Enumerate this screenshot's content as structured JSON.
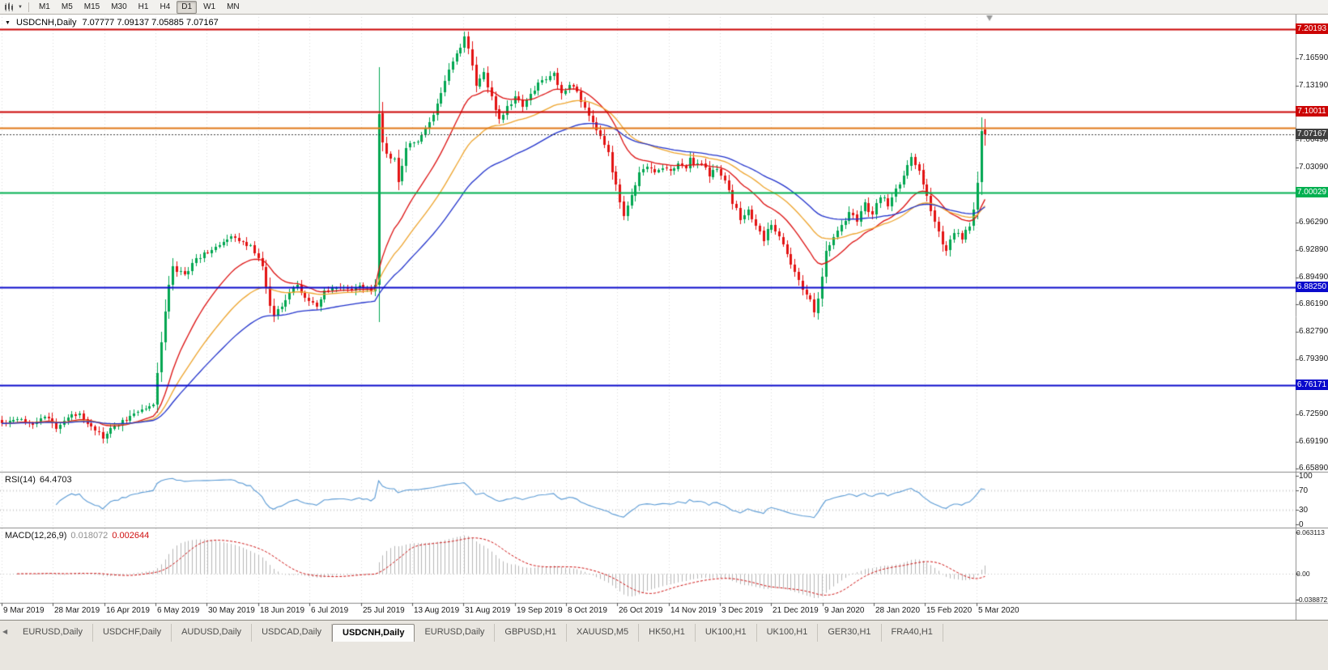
{
  "toolbar": {
    "timeframes": [
      "M1",
      "M5",
      "M15",
      "M30",
      "H1",
      "H4",
      "D1",
      "W1",
      "MN"
    ],
    "active_timeframe": "D1",
    "chart_type_icon": "candlestick-chart-icon"
  },
  "panels": {
    "rsi": {
      "name": "RSI(14)",
      "value": "64.4703",
      "axis": [
        {
          "text": "100",
          "v": 100
        },
        {
          "text": "70",
          "v": 70
        },
        {
          "text": "30",
          "v": 30
        },
        {
          "text": "0",
          "v": 0
        }
      ]
    },
    "macd": {
      "name": "MACD(12,26,9)",
      "value_main": "0.018072",
      "value_signal": "0.002644",
      "axis": [
        {
          "text": "0.063113",
          "v": 0.063113
        },
        {
          "text": "0.00",
          "v": 0
        },
        {
          "text": "-0.038872",
          "v": -0.038872
        }
      ]
    }
  },
  "tabs": {
    "items": [
      "EURUSD,Daily",
      "USDCHF,Daily",
      "AUDUSD,Daily",
      "USDCAD,Daily",
      "USDCNH,Daily",
      "EURUSD,Daily",
      "GBPUSD,H1",
      "XAUUSD,M5",
      "HK50,H1",
      "UK100,H1",
      "UK100,H1",
      "GER30,H1",
      "FRA40,H1"
    ],
    "active_index": 4
  },
  "chart_data": {
    "type": "candlestick",
    "symbol_title": "USDCNH,Daily",
    "ohlc_display": "7.07777 7.09137 7.05885 7.07167",
    "ohlc_current": {
      "open": 7.07777,
      "high": 7.09137,
      "low": 7.05885,
      "close": 7.07167
    },
    "ylim": [
      6.6549,
      7.2209
    ],
    "num_candles": 254,
    "candle_spacing": 4.8,
    "candle_up_color": "#00a651",
    "candle_down_color": "#e31212",
    "price_axis_labels": [
      {
        "text": "7.16590",
        "price": 7.1659
      },
      {
        "text": "7.13190",
        "price": 7.1319
      },
      {
        "text": "7.06490",
        "price": 7.0649
      },
      {
        "text": "7.03090",
        "price": 7.0309
      },
      {
        "text": "6.96290",
        "price": 6.9629
      },
      {
        "text": "6.92890",
        "price": 6.9289
      },
      {
        "text": "6.89490",
        "price": 6.8949
      },
      {
        "text": "6.86190",
        "price": 6.8619
      },
      {
        "text": "6.82790",
        "price": 6.8279
      },
      {
        "text": "6.79390",
        "price": 6.7939
      },
      {
        "text": "6.72590",
        "price": 6.7259
      },
      {
        "text": "6.69190",
        "price": 6.6919
      },
      {
        "text": "6.65890",
        "price": 6.6589
      }
    ],
    "levels": [
      {
        "price": 7.20193,
        "label": "7.20193",
        "color": "#cc0404",
        "style": "solid",
        "role": "resistance"
      },
      {
        "price": 7.10011,
        "label": "7.10011",
        "color": "#cc0404",
        "style": "solid",
        "role": "resistance"
      },
      {
        "price": 7.08,
        "label": "",
        "color": "#e07818",
        "style": "solid",
        "role": "level"
      },
      {
        "price": 7.07167,
        "label": "7.07167",
        "color": "#3f3f3f",
        "style": "dot",
        "role": "last-price"
      },
      {
        "price": 7.00029,
        "label": "7.00029",
        "color": "#00b050",
        "style": "solid",
        "role": "pivot"
      },
      {
        "price": 6.8825,
        "label": "6.88250",
        "color": "#0a0acc",
        "style": "solid",
        "role": "support"
      },
      {
        "price": 6.76171,
        "label": "6.76171",
        "color": "#0a0acc",
        "style": "solid",
        "role": "support"
      }
    ],
    "moving_averages": [
      {
        "period": 18,
        "color": "#dd1111"
      },
      {
        "period": 34,
        "color": "#eea42c"
      },
      {
        "period": 55,
        "color": "#2233cc"
      }
    ],
    "anchors": [
      [
        0,
        6.714
      ],
      [
        4,
        6.722
      ],
      [
        8,
        6.715
      ],
      [
        11,
        6.723
      ],
      [
        14,
        6.71
      ],
      [
        17,
        6.722
      ],
      [
        20,
        6.727
      ],
      [
        23,
        6.712
      ],
      [
        26,
        6.697
      ],
      [
        29,
        6.711
      ],
      [
        33,
        6.723
      ],
      [
        36,
        6.733
      ],
      [
        39,
        6.736
      ],
      [
        40,
        6.776
      ],
      [
        41,
        6.818
      ],
      [
        42,
        6.853
      ],
      [
        43,
        6.886
      ],
      [
        44,
        6.906
      ],
      [
        47,
        6.898
      ],
      [
        50,
        6.918
      ],
      [
        53,
        6.928
      ],
      [
        56,
        6.934
      ],
      [
        59,
        6.944
      ],
      [
        62,
        6.94
      ],
      [
        65,
        6.928
      ],
      [
        67,
        6.906
      ],
      [
        69,
        6.862
      ],
      [
        70,
        6.848
      ],
      [
        72,
        6.862
      ],
      [
        74,
        6.877
      ],
      [
        76,
        6.884
      ],
      [
        79,
        6.866
      ],
      [
        81,
        6.858
      ],
      [
        83,
        6.876
      ],
      [
        86,
        6.884
      ],
      [
        89,
        6.879
      ],
      [
        92,
        6.883
      ],
      [
        95,
        6.88
      ],
      [
        96,
        6.886
      ],
      [
        97,
        7.095
      ],
      [
        98,
        7.062
      ],
      [
        99,
        7.048
      ],
      [
        101,
        7.04
      ],
      [
        102,
        7.012
      ],
      [
        103,
        7.032
      ],
      [
        104,
        7.056
      ],
      [
        106,
        7.062
      ],
      [
        108,
        7.068
      ],
      [
        110,
        7.088
      ],
      [
        112,
        7.108
      ],
      [
        114,
        7.138
      ],
      [
        116,
        7.162
      ],
      [
        118,
        7.178
      ],
      [
        119,
        7.192
      ],
      [
        120,
        7.178
      ],
      [
        121,
        7.158
      ],
      [
        122,
        7.132
      ],
      [
        124,
        7.146
      ],
      [
        126,
        7.118
      ],
      [
        128,
        7.09
      ],
      [
        130,
        7.104
      ],
      [
        132,
        7.118
      ],
      [
        134,
        7.106
      ],
      [
        136,
        7.122
      ],
      [
        138,
        7.134
      ],
      [
        140,
        7.142
      ],
      [
        142,
        7.146
      ],
      [
        144,
        7.122
      ],
      [
        146,
        7.136
      ],
      [
        148,
        7.124
      ],
      [
        150,
        7.104
      ],
      [
        152,
        7.088
      ],
      [
        154,
        7.068
      ],
      [
        156,
        7.048
      ],
      [
        158,
        7.008
      ],
      [
        160,
        6.968
      ],
      [
        162,
        6.998
      ],
      [
        164,
        7.022
      ],
      [
        166,
        7.034
      ],
      [
        168,
        7.022
      ],
      [
        170,
        7.032
      ],
      [
        172,
        7.026
      ],
      [
        174,
        7.036
      ],
      [
        176,
        7.03
      ],
      [
        177,
        7.046
      ],
      [
        178,
        7.032
      ],
      [
        180,
        7.036
      ],
      [
        182,
        7.022
      ],
      [
        184,
        7.03
      ],
      [
        186,
        7.012
      ],
      [
        188,
        6.988
      ],
      [
        190,
        6.968
      ],
      [
        192,
        6.978
      ],
      [
        194,
        6.958
      ],
      [
        196,
        6.942
      ],
      [
        198,
        6.962
      ],
      [
        200,
        6.948
      ],
      [
        202,
        6.922
      ],
      [
        204,
        6.9
      ],
      [
        206,
        6.882
      ],
      [
        208,
        6.866
      ],
      [
        209,
        6.852
      ],
      [
        210,
        6.87
      ],
      [
        211,
        6.898
      ],
      [
        212,
        6.928
      ],
      [
        214,
        6.944
      ],
      [
        216,
        6.96
      ],
      [
        218,
        6.976
      ],
      [
        220,
        6.966
      ],
      [
        222,
        6.986
      ],
      [
        224,
        6.972
      ],
      [
        226,
        6.996
      ],
      [
        228,
        6.986
      ],
      [
        230,
        7.002
      ],
      [
        232,
        7.022
      ],
      [
        234,
        7.046
      ],
      [
        236,
        7.026
      ],
      [
        238,
        6.996
      ],
      [
        240,
        6.964
      ],
      [
        242,
        6.936
      ],
      [
        243,
        6.926
      ],
      [
        245,
        6.952
      ],
      [
        247,
        6.944
      ],
      [
        249,
        6.958
      ],
      [
        250,
        6.976
      ],
      [
        251,
        7.012
      ],
      [
        252,
        7.078
      ],
      [
        253,
        7.0716
      ]
    ],
    "x_labels": [
      "9 Mar 2019",
      "28 Mar 2019",
      "16 Apr 2019",
      "6 May 2019",
      "30 May 2019",
      "18 Jun 2019",
      "6 Jul 2019",
      "25 Jul 2019",
      "13 Aug 2019",
      "31 Aug 2019",
      "19 Sep 2019",
      "8 Oct 2019",
      "26 Oct 2019",
      "14 Nov 2019",
      "3 Dec 2019",
      "21 Dec 2019",
      "9 Jan 2020",
      "28 Jan 2020",
      "15 Feb 2020",
      "5 Mar 2020"
    ],
    "rsi": {
      "period": 14,
      "color": "#5b9bd5",
      "guide_levels": [
        70,
        30
      ],
      "last": 64.4703
    },
    "macd": {
      "fast": 12,
      "slow": 26,
      "signal": 9,
      "ylim": [
        -0.038872,
        0.063113
      ],
      "hist_color": "#b6b6b6",
      "signal_color": "#cf1010",
      "last_main": 0.018072,
      "last_signal": 0.002644
    }
  }
}
